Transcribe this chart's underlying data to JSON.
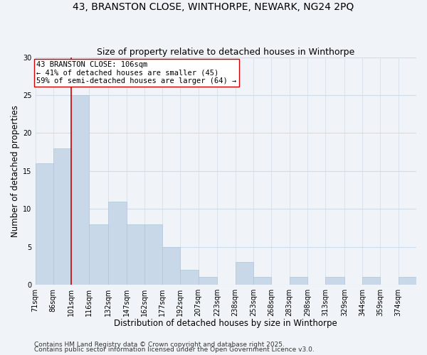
{
  "title": "43, BRANSTON CLOSE, WINTHORPE, NEWARK, NG24 2PQ",
  "subtitle": "Size of property relative to detached houses in Winthorpe",
  "xlabel": "Distribution of detached houses by size in Winthorpe",
  "ylabel": "Number of detached properties",
  "bar_color": "#c8d8e8",
  "bar_edge_color": "#b0c4d8",
  "background_color": "#f0f4f8",
  "grid_color": "#d0dce8",
  "vline_x": 101,
  "vline_color": "#cc0000",
  "annotation_title": "43 BRANSTON CLOSE: 106sqm",
  "annotation_line1": "← 41% of detached houses are smaller (45)",
  "annotation_line2": "59% of semi-detached houses are larger (64) →",
  "bins": [
    71,
    86,
    101,
    116,
    132,
    147,
    162,
    177,
    192,
    207,
    223,
    238,
    253,
    268,
    283,
    298,
    313,
    329,
    344,
    359,
    374,
    389
  ],
  "counts": [
    16,
    18,
    25,
    8,
    11,
    8,
    8,
    5,
    2,
    1,
    0,
    3,
    1,
    0,
    1,
    0,
    1,
    0,
    1,
    0,
    1
  ],
  "ylim": [
    0,
    30
  ],
  "yticks": [
    0,
    5,
    10,
    15,
    20,
    25,
    30
  ],
  "tick_labels": [
    "71sqm",
    "86sqm",
    "101sqm",
    "116sqm",
    "132sqm",
    "147sqm",
    "162sqm",
    "177sqm",
    "192sqm",
    "207sqm",
    "223sqm",
    "238sqm",
    "253sqm",
    "268sqm",
    "283sqm",
    "298sqm",
    "313sqm",
    "329sqm",
    "344sqm",
    "359sqm",
    "374sqm"
  ],
  "footer1": "Contains HM Land Registry data © Crown copyright and database right 2025.",
  "footer2": "Contains public sector information licensed under the Open Government Licence v3.0.",
  "title_fontsize": 10,
  "subtitle_fontsize": 9,
  "axis_label_fontsize": 8.5,
  "tick_fontsize": 7,
  "annotation_fontsize": 7.5,
  "footer_fontsize": 6.5
}
